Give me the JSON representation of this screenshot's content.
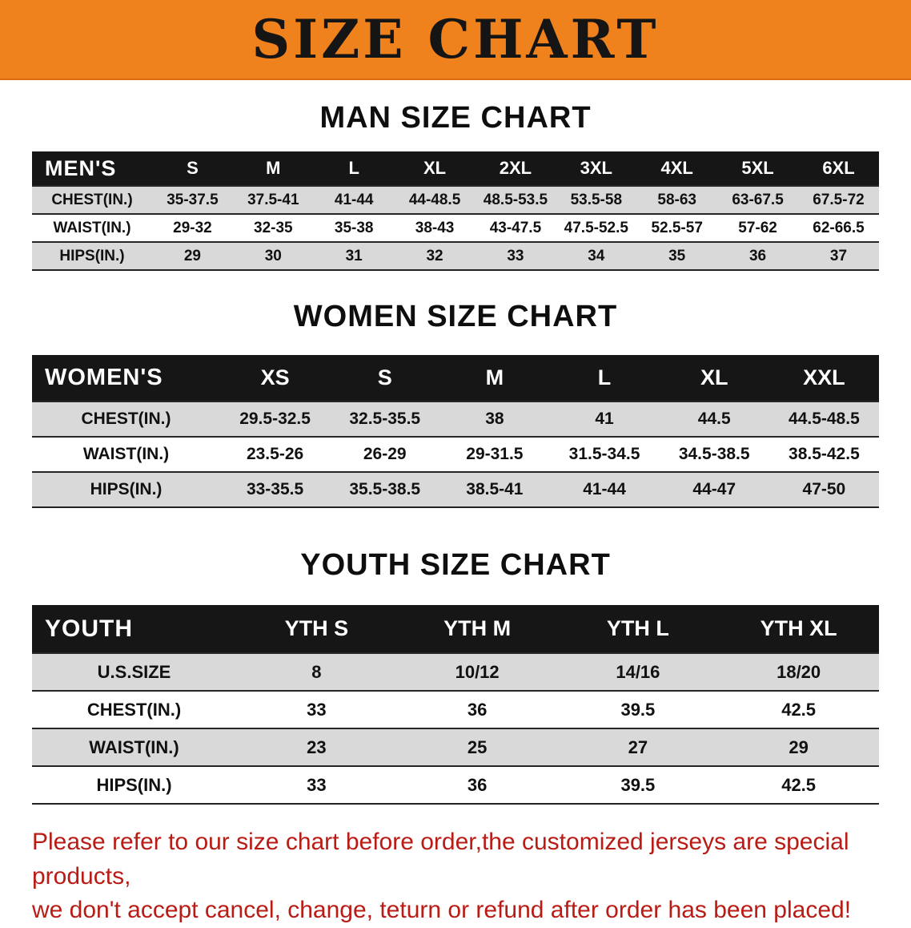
{
  "banner": {
    "title": "SIZE CHART"
  },
  "men": {
    "heading": "MAN SIZE CHART",
    "header": [
      "MEN'S",
      "S",
      "M",
      "L",
      "XL",
      "2XL",
      "3XL",
      "4XL",
      "5XL",
      "6XL"
    ],
    "rows": [
      {
        "label": "CHEST(IN.)",
        "values": [
          "35-37.5",
          "37.5-41",
          "41-44",
          "44-48.5",
          "48.5-53.5",
          "53.5-58",
          "58-63",
          "63-67.5",
          "67.5-72"
        ]
      },
      {
        "label": "WAIST(IN.)",
        "values": [
          "29-32",
          "32-35",
          "35-38",
          "38-43",
          "43-47.5",
          "47.5-52.5",
          "52.5-57",
          "57-62",
          "62-66.5"
        ]
      },
      {
        "label": "HIPS(IN.)",
        "values": [
          "29",
          "30",
          "31",
          "32",
          "33",
          "34",
          "35",
          "36",
          "37"
        ]
      }
    ]
  },
  "women": {
    "heading": "WOMEN SIZE CHART",
    "header": [
      "WOMEN'S",
      "XS",
      "S",
      "M",
      "L",
      "XL",
      "XXL"
    ],
    "rows": [
      {
        "label": "CHEST(IN.)",
        "values": [
          "29.5-32.5",
          "32.5-35.5",
          "38",
          "41",
          "44.5",
          "44.5-48.5"
        ]
      },
      {
        "label": "WAIST(IN.)",
        "values": [
          "23.5-26",
          "26-29",
          "29-31.5",
          "31.5-34.5",
          "34.5-38.5",
          "38.5-42.5"
        ]
      },
      {
        "label": "HIPS(IN.)",
        "values": [
          "33-35.5",
          "35.5-38.5",
          "38.5-41",
          "41-44",
          "44-47",
          "47-50"
        ]
      }
    ]
  },
  "youth": {
    "heading": "YOUTH SIZE CHART",
    "header": [
      "YOUTH",
      "YTH S",
      "YTH M",
      "YTH L",
      "YTH XL"
    ],
    "rows": [
      {
        "label": "U.S.SIZE",
        "values": [
          "8",
          "10/12",
          "14/16",
          "18/20"
        ]
      },
      {
        "label": "CHEST(IN.)",
        "values": [
          "33",
          "36",
          "39.5",
          "42.5"
        ]
      },
      {
        "label": "WAIST(IN.)",
        "values": [
          "23",
          "25",
          "27",
          "29"
        ]
      },
      {
        "label": "HIPS(IN.)",
        "values": [
          "33",
          "36",
          "39.5",
          "42.5"
        ]
      }
    ]
  },
  "footer": {
    "line1": "Please refer to our size chart before order,the customized jerseys are special products,",
    "line2": "we don't accept cancel, change, teturn or refund after order has been placed!"
  },
  "colors": {
    "banner_orange": "#f0821e",
    "header_black": "#161616",
    "row_gray": "#d9d9d9",
    "footer_red": "#b91b15"
  }
}
